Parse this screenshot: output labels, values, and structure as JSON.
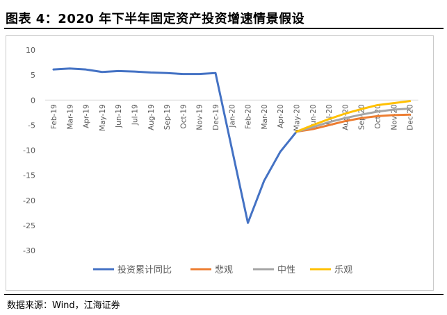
{
  "header": {
    "title": "图表 4：2020 年下半年固定资产投资增速情景假设"
  },
  "footer": {
    "source": "数据来源：Wind，江海证券"
  },
  "chart_data": {
    "type": "line",
    "title": "",
    "xlabel": "",
    "ylabel": "",
    "ylim": [
      -30,
      10
    ],
    "yticks": [
      10,
      5,
      0,
      -5,
      -10,
      -15,
      -20,
      -25,
      -30
    ],
    "grid": false,
    "legend_position": "bottom",
    "categories": [
      "Feb-19",
      "Mar-19",
      "Apr-19",
      "May-19",
      "Jun-19",
      "Jul-19",
      "Aug-19",
      "Sep-19",
      "Oct-19",
      "Nov-19",
      "Dec-19",
      "Jan-20",
      "Feb-20",
      "Mar-20",
      "Apr-20",
      "May-20",
      "Jun-20",
      "Jul-20",
      "Aug-20",
      "Sep-20",
      "Oct-20",
      "Nov-20",
      "Dec-20"
    ],
    "series": [
      {
        "name": "投资累计同比",
        "color": "#4472C4",
        "values": [
          6.1,
          6.3,
          6.1,
          5.6,
          5.8,
          5.7,
          5.5,
          5.4,
          5.2,
          5.2,
          5.4,
          null,
          -24.5,
          -16.1,
          -10.3,
          -6.3,
          null,
          null,
          null,
          null,
          null,
          null,
          null
        ]
      },
      {
        "name": "悲观",
        "color": "#ED7D31",
        "values": [
          null,
          null,
          null,
          null,
          null,
          null,
          null,
          null,
          null,
          null,
          null,
          null,
          null,
          null,
          null,
          -6.3,
          -5.8,
          -5.0,
          -4.2,
          -3.6,
          -3.2,
          -3.0,
          -2.9
        ]
      },
      {
        "name": "中性",
        "color": "#A5A5A5",
        "values": [
          null,
          null,
          null,
          null,
          null,
          null,
          null,
          null,
          null,
          null,
          null,
          null,
          null,
          null,
          null,
          -6.3,
          -5.4,
          -4.4,
          -3.6,
          -2.9,
          -2.3,
          -1.9,
          -1.7
        ]
      },
      {
        "name": "乐观",
        "color": "#FFC000",
        "values": [
          null,
          null,
          null,
          null,
          null,
          null,
          null,
          null,
          null,
          null,
          null,
          null,
          null,
          null,
          null,
          -6.3,
          -5.0,
          -3.8,
          -2.7,
          -1.8,
          -1.0,
          -0.6,
          -0.2
        ]
      }
    ]
  }
}
